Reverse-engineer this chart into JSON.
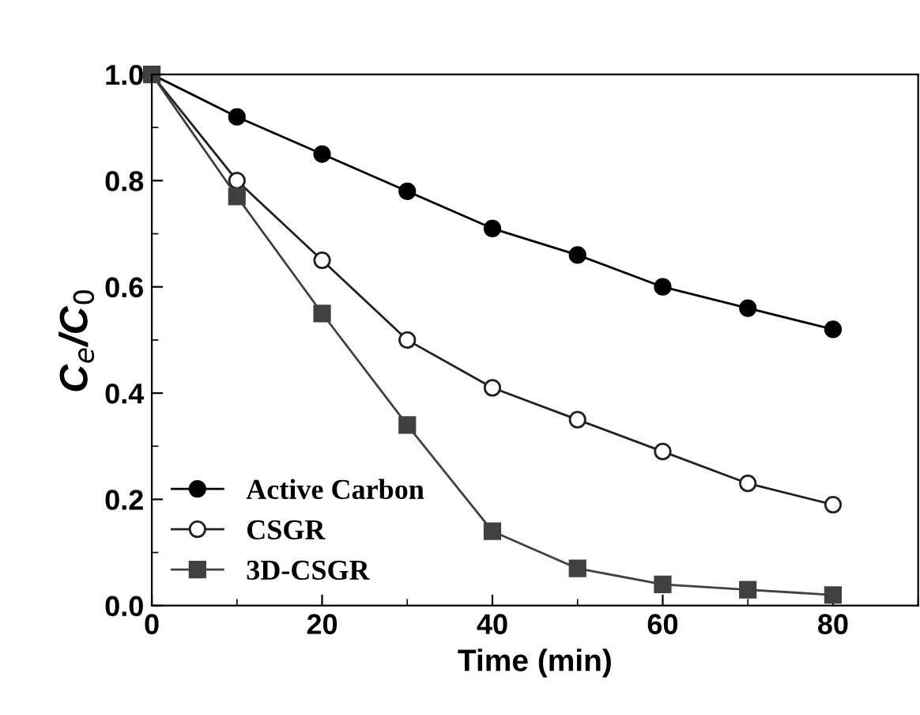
{
  "chart_data": {
    "type": "line",
    "xlabel": "Time (min)",
    "ylabel": "C$_{e}$/C$_{0}$",
    "x": [
      0,
      10,
      20,
      30,
      40,
      50,
      60,
      70,
      80
    ],
    "series": [
      {
        "name": "Active Carbon",
        "color": "#000000",
        "marker": "circle",
        "values": [
          1.0,
          0.92,
          0.85,
          0.78,
          0.71,
          0.66,
          0.6,
          0.56,
          0.52
        ]
      },
      {
        "name": "CSGR",
        "color": "#202020",
        "marker": "circle",
        "values": [
          1.0,
          0.8,
          0.65,
          0.5,
          0.41,
          0.35,
          0.29,
          0.23,
          0.19
        ]
      },
      {
        "name": "3D-CSGR",
        "color": "#404040",
        "marker": "square",
        "values": [
          1.0,
          0.77,
          0.55,
          0.34,
          0.14,
          0.07,
          0.04,
          0.03,
          0.02
        ]
      }
    ],
    "xlim": [
      0,
      90
    ],
    "ylim": [
      0.0,
      1.0
    ],
    "xticks": [
      0,
      20,
      40,
      60,
      80
    ],
    "yticks": [
      {
        "value": 0.0,
        "label": "0.0"
      },
      {
        "value": 0.2,
        "label": "0.2"
      },
      {
        "value": 0.4,
        "label": "0.4"
      },
      {
        "value": 0.6,
        "label": "0.6"
      },
      {
        "value": 0.8,
        "label": "0.8"
      },
      {
        "value": 1.0,
        "label": "1.0"
      }
    ],
    "grid": false,
    "legend": "bottom left",
    "line_style": "solid"
  }
}
